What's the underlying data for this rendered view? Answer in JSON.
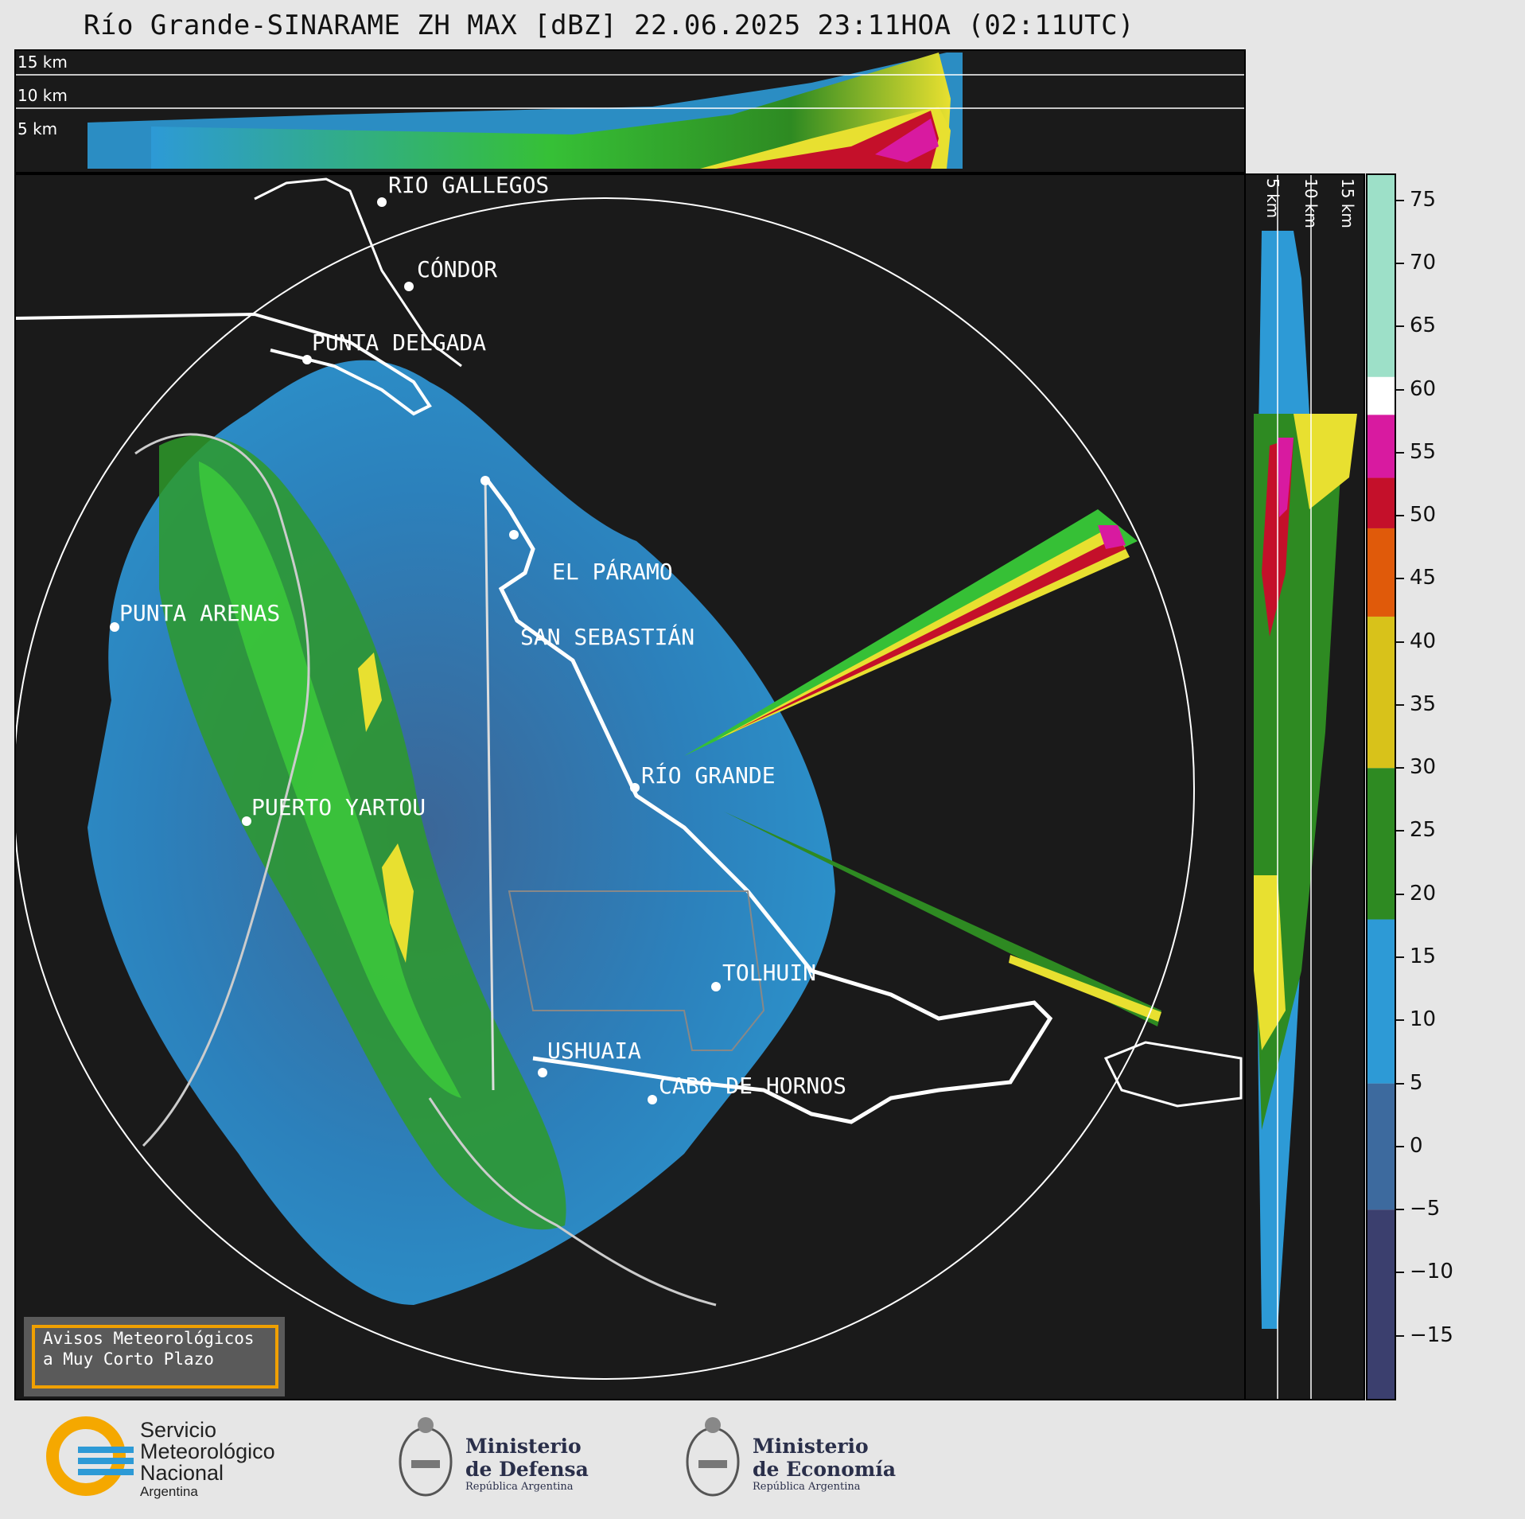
{
  "title": "Río Grande-SINARAME ZH MAX [dBZ] 22.06.2025 23:11HOA (02:11UTC)",
  "top_panel": {
    "height_labels": [
      "15 km",
      "10 km",
      "5 km"
    ]
  },
  "right_panel": {
    "height_labels": [
      "5 km",
      "10 km",
      "15 km"
    ]
  },
  "cities": [
    "RÍO GALLEGOS",
    "CÓNDOR",
    "PUNTA DELGADA",
    "EL PÁRAMO",
    "SAN SEBASTIÁN",
    "PUNTA ARENAS",
    "RÍO GRANDE",
    "PUERTO YARTOU",
    "TOLHUIN",
    "USHUAIA",
    "CABO DE HORNOS"
  ],
  "colorbar": {
    "unit": "dBZ",
    "ticks": [
      "75",
      "70",
      "65",
      "60",
      "55",
      "50",
      "45",
      "40",
      "35",
      "30",
      "25",
      "20",
      "15",
      "10",
      "5",
      "0",
      "−5",
      "−10",
      "−15"
    ],
    "bands": [
      {
        "from": -20,
        "to": -5,
        "color": "#3b3f6e"
      },
      {
        "from": -5,
        "to": 5,
        "color": "#3d6a9e"
      },
      {
        "from": 5,
        "to": 18,
        "color": "#2d9ad6"
      },
      {
        "from": 18,
        "to": 30,
        "color": "#2e8a22"
      },
      {
        "from": 30,
        "to": 42,
        "color": "#d8c21a"
      },
      {
        "from": 42,
        "to": 49,
        "color": "#e05a0a"
      },
      {
        "from": 49,
        "to": 53,
        "color": "#c4102a"
      },
      {
        "from": 53,
        "to": 58,
        "color": "#d81aa0"
      },
      {
        "from": 58,
        "to": 61,
        "color": "#ffffff"
      },
      {
        "from": 61,
        "to": 77,
        "color": "#9de0c8"
      }
    ]
  },
  "notice": {
    "line1": "Avisos Meteorológicos",
    "line2": "a Muy Corto Plazo"
  },
  "logos": {
    "smn": {
      "line1": "Servicio",
      "line2": "Meteorológico",
      "line3": "Nacional",
      "line4": "Argentina"
    },
    "defensa": {
      "line1": "Ministerio",
      "line2": "de Defensa",
      "line3": "República Argentina"
    },
    "economia": {
      "line1": "Ministerio",
      "line2": "de Economía",
      "line3": "República Argentina"
    }
  },
  "colors": {
    "background": "#e6e6e6",
    "map_bg": "#1a1a1a",
    "coast": "#ffffff",
    "accent": "#f0a000"
  }
}
